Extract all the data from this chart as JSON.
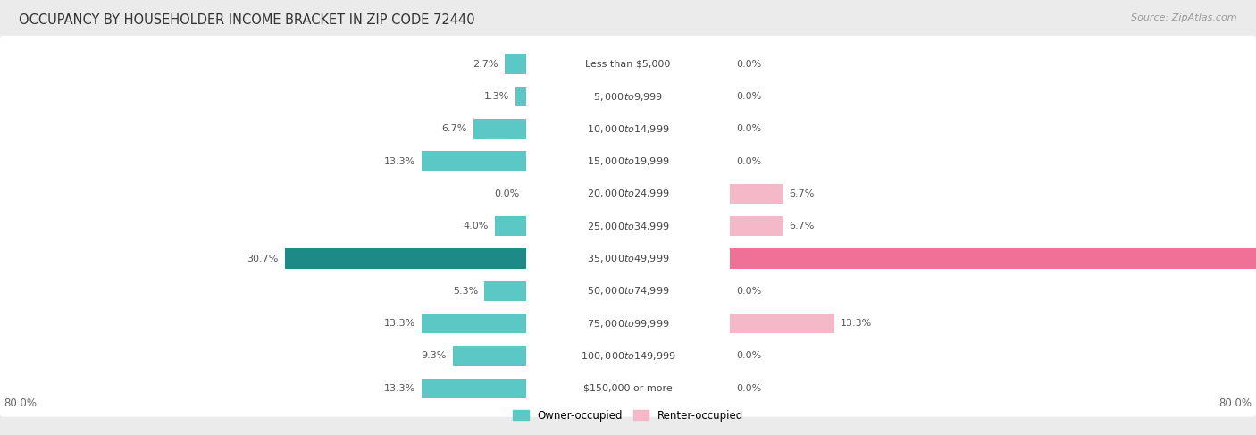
{
  "title": "OCCUPANCY BY HOUSEHOLDER INCOME BRACKET IN ZIP CODE 72440",
  "source": "Source: ZipAtlas.com",
  "categories": [
    "Less than $5,000",
    "$5,000 to $9,999",
    "$10,000 to $14,999",
    "$15,000 to $19,999",
    "$20,000 to $24,999",
    "$25,000 to $34,999",
    "$35,000 to $49,999",
    "$50,000 to $74,999",
    "$75,000 to $99,999",
    "$100,000 to $149,999",
    "$150,000 or more"
  ],
  "owner_values": [
    2.7,
    1.3,
    6.7,
    13.3,
    0.0,
    4.0,
    30.7,
    5.3,
    13.3,
    9.3,
    13.3
  ],
  "renter_values": [
    0.0,
    0.0,
    0.0,
    0.0,
    6.7,
    6.7,
    73.3,
    0.0,
    13.3,
    0.0,
    0.0
  ],
  "owner_color_normal": "#5bc8c5",
  "owner_color_highlight": "#1e8a87",
  "renter_color_normal": "#f5b8c8",
  "renter_color_highlight": "#f07098",
  "highlight_row": 6,
  "max_val": 80.0,
  "legend_owner": "Owner-occupied",
  "legend_renter": "Renter-occupied",
  "bg_color": "#ebebeb",
  "bar_bg_color": "#ffffff",
  "bar_height": 0.62
}
